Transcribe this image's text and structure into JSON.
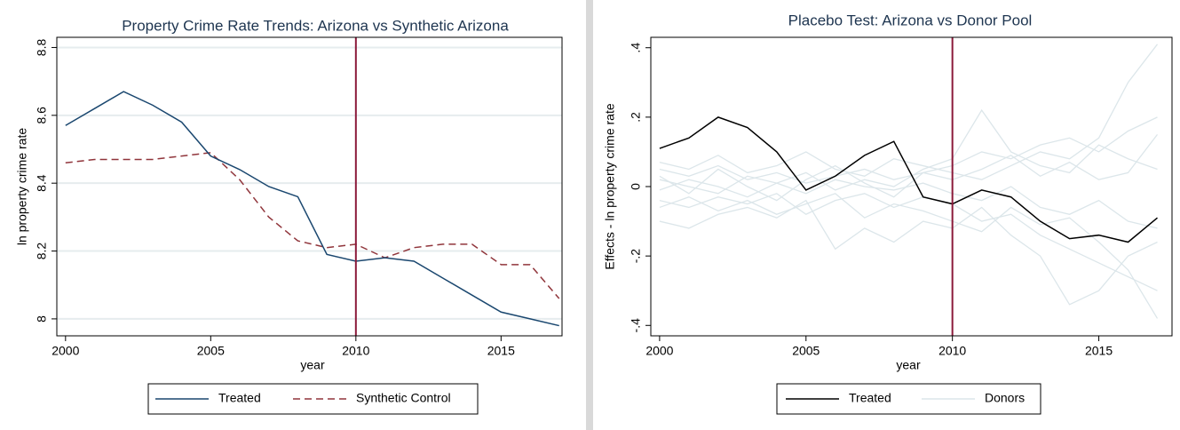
{
  "chart_data": [
    {
      "type": "line",
      "title": "Property Crime Rate Trends: Arizona vs Synthetic Arizona",
      "xlabel": "year",
      "ylabel": "ln property crime rate",
      "x": [
        2000,
        2001,
        2002,
        2003,
        2004,
        2005,
        2006,
        2007,
        2008,
        2009,
        2010,
        2011,
        2012,
        2013,
        2014,
        2015,
        2016,
        2017
      ],
      "xlim": [
        1999.7,
        2017.1
      ],
      "xticks": [
        2000,
        2005,
        2010,
        2015
      ],
      "ylim": [
        7.95,
        8.83
      ],
      "yticks": [
        8,
        8.2,
        8.4,
        8.6,
        8.8
      ],
      "grid": true,
      "vline": 2010,
      "vline_color": "#8b1a3a",
      "series": [
        {
          "name": "Treated",
          "color": "#1a476f",
          "dash": false,
          "values": [
            8.57,
            8.62,
            8.67,
            8.63,
            8.58,
            8.48,
            8.44,
            8.39,
            8.36,
            8.19,
            8.17,
            8.18,
            8.17,
            8.12,
            8.07,
            8.02,
            8.0,
            7.98
          ]
        },
        {
          "name": "Synthetic Control",
          "color": "#90353b",
          "dash": true,
          "values": [
            8.46,
            8.47,
            8.47,
            8.47,
            8.48,
            8.49,
            8.41,
            8.3,
            8.23,
            8.21,
            8.22,
            8.18,
            8.21,
            8.22,
            8.22,
            8.16,
            8.16,
            8.06
          ]
        }
      ]
    },
    {
      "type": "line",
      "title": "Placebo Test: Arizona vs Donor Pool",
      "xlabel": "year",
      "ylabel": "Effects - ln property crime rate",
      "x": [
        2000,
        2001,
        2002,
        2003,
        2004,
        2005,
        2006,
        2007,
        2008,
        2009,
        2010,
        2011,
        2012,
        2013,
        2014,
        2015,
        2016,
        2017
      ],
      "xlim": [
        1999.7,
        2017.5
      ],
      "xticks": [
        2000,
        2005,
        2010,
        2015
      ],
      "ylim": [
        -0.43,
        0.43
      ],
      "yticks": [
        {
          "value": -0.4,
          "label": "-.4"
        },
        {
          "value": -0.2,
          "label": "-.2"
        },
        0,
        {
          "value": 0.2,
          "label": ".2"
        },
        {
          "value": 0.4,
          "label": ".4"
        }
      ],
      "grid": false,
      "vline": 2010,
      "vline_color": "#8b1a3a",
      "series": [
        {
          "name": "Treated",
          "color": "#000000",
          "dash": false,
          "values": [
            0.11,
            0.14,
            0.2,
            0.17,
            0.1,
            -0.01,
            0.03,
            0.09,
            0.13,
            -0.03,
            -0.05,
            -0.01,
            -0.03,
            -0.1,
            -0.15,
            -0.14,
            -0.16,
            -0.09
          ]
        },
        {
          "name": "Donors",
          "color": "#dce6ea",
          "dash": false,
          "lines": [
            [
              0.05,
              0.03,
              0.06,
              0.02,
              0.04,
              0.01,
              0.03,
              0.05,
              0.02,
              0.04,
              0.06,
              0.1,
              0.08,
              0.12,
              0.14,
              0.1,
              0.16,
              0.2
            ],
            [
              -0.04,
              -0.06,
              -0.03,
              -0.05,
              -0.02,
              -0.08,
              -0.04,
              -0.02,
              -0.06,
              -0.03,
              -0.05,
              -0.1,
              -0.08,
              -0.14,
              -0.18,
              -0.22,
              -0.26,
              -0.3
            ],
            [
              0.02,
              0.0,
              -0.02,
              0.03,
              0.01,
              0.04,
              -0.01,
              0.02,
              0.0,
              0.05,
              0.08,
              0.22,
              0.1,
              0.06,
              0.04,
              0.12,
              0.08,
              0.05
            ],
            [
              -0.1,
              -0.12,
              -0.08,
              -0.06,
              -0.09,
              -0.04,
              -0.18,
              -0.12,
              -0.16,
              -0.1,
              -0.12,
              -0.06,
              -0.14,
              -0.2,
              -0.34,
              -0.3,
              -0.2,
              -0.16
            ],
            [
              0.07,
              0.05,
              0.09,
              0.04,
              0.06,
              0.1,
              0.05,
              0.03,
              0.08,
              0.06,
              0.04,
              0.02,
              0.06,
              0.1,
              0.08,
              0.14,
              0.3,
              0.41
            ],
            [
              -0.01,
              0.02,
              0.0,
              -0.03,
              0.01,
              -0.02,
              0.02,
              0.0,
              -0.01,
              0.01,
              -0.02,
              -0.04,
              0.0,
              -0.06,
              -0.08,
              -0.04,
              -0.1,
              -0.12
            ],
            [
              0.03,
              -0.02,
              0.05,
              0.0,
              -0.04,
              0.02,
              0.06,
              0.01,
              -0.03,
              0.04,
              0.02,
              0.05,
              0.09,
              0.03,
              0.07,
              0.02,
              0.04,
              0.15
            ],
            [
              -0.06,
              -0.03,
              -0.07,
              -0.04,
              -0.08,
              -0.05,
              -0.02,
              -0.09,
              -0.05,
              -0.07,
              -0.1,
              -0.13,
              -0.06,
              -0.11,
              -0.09,
              -0.16,
              -0.24,
              -0.38
            ]
          ]
        }
      ]
    }
  ]
}
